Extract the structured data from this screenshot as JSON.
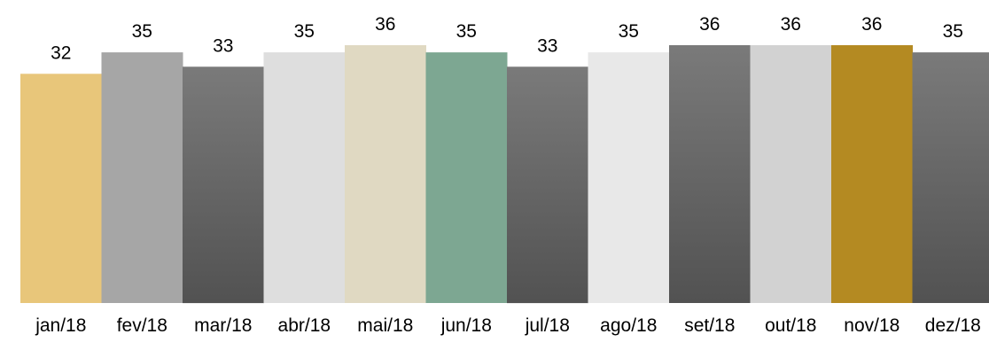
{
  "chart_data": {
    "type": "bar",
    "categories": [
      "jan/18",
      "fev/18",
      "mar/18",
      "abr/18",
      "mai/18",
      "jun/18",
      "jul/18",
      "ago/18",
      "set/18",
      "out/18",
      "nov/18",
      "dez/18"
    ],
    "values": [
      32,
      35,
      33,
      35,
      36,
      35,
      33,
      35,
      36,
      36,
      36,
      35
    ],
    "data_labels": [
      "32",
      "35",
      "33",
      "35",
      "36",
      "35",
      "33",
      "35",
      "36",
      "36",
      "36",
      "35"
    ],
    "colors": [
      "#e8c67a",
      "#a6a6a6",
      "gradient-dark",
      "#dedede",
      "#e0d9c2",
      "#7da792",
      "gradient-dark",
      "#e8e8e8",
      "gradient-dark",
      "#d2d2d2",
      "#b48a22",
      "gradient-dark"
    ],
    "gradient": {
      "top": "#7a7a7a",
      "bottom": "#525252"
    },
    "title": "",
    "xlabel": "",
    "ylabel": "",
    "ylim": [
      0,
      36
    ],
    "grid": false,
    "legend": "none"
  }
}
